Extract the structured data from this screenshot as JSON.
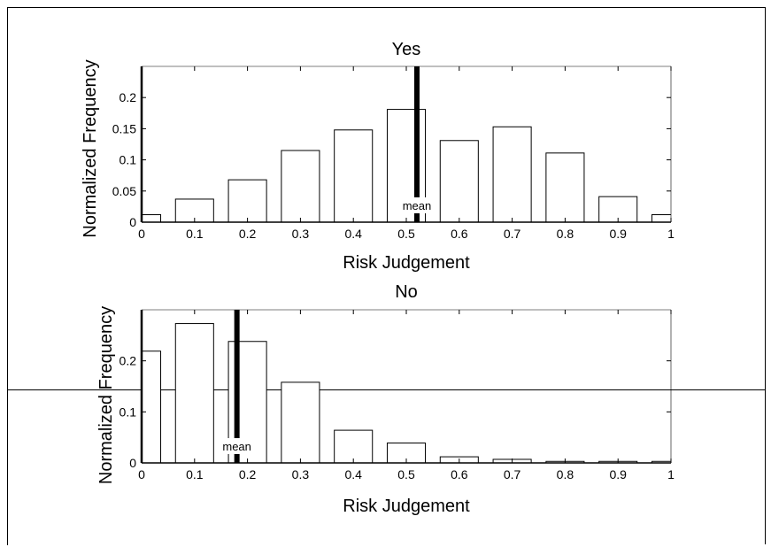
{
  "chart_data": [
    {
      "type": "bar",
      "title": "Yes",
      "xlabel": "Risk Judgement",
      "ylabel": "Normalized Frequency",
      "xlim": [
        0,
        1
      ],
      "ylim": [
        0,
        0.25
      ],
      "xticks": [
        "0",
        "0.1",
        "0.2",
        "0.3",
        "0.4",
        "0.5",
        "0.6",
        "0.7",
        "0.8",
        "0.9",
        "1"
      ],
      "yticks": [
        "0",
        "0.05",
        "0.1",
        "0.15",
        "0.2"
      ],
      "ytick_values": [
        0,
        0.05,
        0.1,
        0.15,
        0.2
      ],
      "bin_centers": [
        0,
        0.1,
        0.2,
        0.3,
        0.4,
        0.5,
        0.6,
        0.7,
        0.8,
        0.9,
        1.0
      ],
      "values": [
        0.012,
        0.037,
        0.068,
        0.115,
        0.148,
        0.181,
        0.131,
        0.153,
        0.111,
        0.041,
        0.012
      ],
      "mean": 0.52,
      "mean_label": "mean"
    },
    {
      "type": "bar",
      "title": "No",
      "xlabel": "Risk Judgement",
      "ylabel": "Normalized Frequency",
      "xlim": [
        0,
        1
      ],
      "ylim": [
        0,
        0.3
      ],
      "xticks": [
        "0",
        "0.1",
        "0.2",
        "0.3",
        "0.4",
        "0.5",
        "0.6",
        "0.7",
        "0.8",
        "0.9",
        "1"
      ],
      "yticks": [
        "0",
        "0.1",
        "0.2"
      ],
      "ytick_values": [
        0,
        0.1,
        0.2
      ],
      "bin_centers": [
        0,
        0.1,
        0.2,
        0.3,
        0.4,
        0.5,
        0.6,
        0.7,
        0.8,
        0.9,
        1.0
      ],
      "values": [
        0.219,
        0.273,
        0.238,
        0.158,
        0.064,
        0.039,
        0.012,
        0.007,
        0.003,
        0.003,
        0.003
      ],
      "mean": 0.18,
      "mean_label": "mean"
    }
  ]
}
